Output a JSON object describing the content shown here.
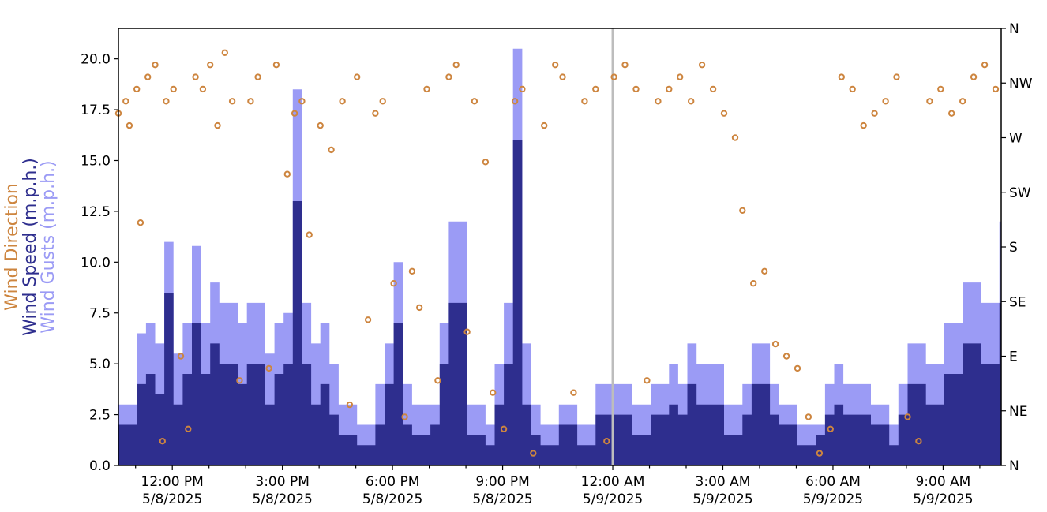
{
  "chart_data": {
    "type": "area",
    "title": "",
    "ylabel_parts": [
      {
        "text": "Wind Direction",
        "color": "#cd853f"
      },
      {
        "text": "Wind Speed (m.p.h.)",
        "color": "#2e2e8e"
      },
      {
        "text": "Wind Gusts (m.p.h.)",
        "color": "#9b9bf5"
      }
    ],
    "ylim": [
      0,
      21.5
    ],
    "yticks": [
      "0.0",
      "2.5",
      "5.0",
      "7.5",
      "10.0",
      "12.5",
      "15.0",
      "17.5",
      "20.0"
    ],
    "y2_ticks": [
      "N",
      "NE",
      "E",
      "SE",
      "S",
      "SW",
      "W",
      "NW",
      "N"
    ],
    "y2_range_degrees": [
      0,
      360
    ],
    "x_start": "5/8/2025 10:32 AM",
    "x_end": "5/9/2025 10:35 AM",
    "x_ticks": [
      {
        "time": "12:00 PM",
        "date": "5/8/2025"
      },
      {
        "time": "3:00 PM",
        "date": "5/8/2025"
      },
      {
        "time": "6:00 PM",
        "date": "5/8/2025"
      },
      {
        "time": "9:00 PM",
        "date": "5/8/2025"
      },
      {
        "time": "12:00 AM",
        "date": "5/9/2025"
      },
      {
        "time": "3:00 AM",
        "date": "5/9/2025"
      },
      {
        "time": "6:00 AM",
        "date": "5/9/2025"
      },
      {
        "time": "9:00 AM",
        "date": "5/9/2025"
      }
    ],
    "midnight_marker": "5/9/2025 12:00 AM",
    "grid": false,
    "colors": {
      "direction": "#cd853f",
      "speed": "#2e2e8e",
      "gusts": "#9b9bf5",
      "marker_line": "#bdbdbd"
    },
    "series": [
      {
        "name": "Wind Gusts (m.p.h.)",
        "kind": "area",
        "x_hours": [
          0,
          0.5,
          0.75,
          1,
          1.25,
          1.5,
          1.75,
          2,
          2.25,
          2.5,
          2.75,
          3,
          3.25,
          3.5,
          4,
          4.25,
          4.5,
          4.75,
          5,
          5.25,
          5.5,
          5.75,
          6,
          6.5,
          7,
          7.25,
          7.5,
          7.75,
          8,
          8.5,
          8.75,
          9,
          9.5,
          10,
          10.25,
          10.5,
          10.75,
          11,
          11.25,
          11.5,
          12,
          12.5,
          13,
          13.5,
          14,
          14.5,
          15,
          15.25,
          15.5,
          15.75,
          16,
          16.5,
          17,
          17.25,
          17.5,
          17.75,
          18,
          18.5,
          19,
          19.25,
          19.5,
          19.75,
          20,
          20.5,
          21,
          21.25,
          21.5,
          21.75,
          22,
          22.5,
          23,
          23.5,
          24
        ],
        "values": [
          3,
          6.5,
          7,
          6,
          11,
          5.5,
          7,
          10.8,
          7,
          9,
          8,
          8,
          7,
          8,
          5.5,
          7,
          7.5,
          18.5,
          8,
          6,
          7,
          5,
          3,
          2,
          4,
          6,
          10,
          4,
          3,
          3,
          7,
          12,
          3,
          2,
          5,
          8,
          20.5,
          6,
          3,
          2,
          3,
          2,
          4,
          4,
          3,
          4,
          5,
          4,
          6,
          5,
          5,
          3,
          4,
          6,
          6,
          4,
          3,
          2,
          2,
          4,
          5,
          4,
          4,
          3,
          2,
          4,
          6,
          6,
          5,
          7,
          9,
          8,
          12
        ]
      },
      {
        "name": "Wind Speed (m.p.h.)",
        "kind": "area",
        "x_hours": [
          0,
          0.5,
          0.75,
          1,
          1.25,
          1.5,
          1.75,
          2,
          2.25,
          2.5,
          2.75,
          3,
          3.25,
          3.5,
          4,
          4.25,
          4.5,
          4.75,
          5,
          5.25,
          5.5,
          5.75,
          6,
          6.5,
          7,
          7.25,
          7.5,
          7.75,
          8,
          8.5,
          8.75,
          9,
          9.5,
          10,
          10.25,
          10.5,
          10.75,
          11,
          11.25,
          11.5,
          12,
          12.5,
          13,
          13.5,
          14,
          14.5,
          15,
          15.25,
          15.5,
          15.75,
          16,
          16.5,
          17,
          17.25,
          17.5,
          17.75,
          18,
          18.5,
          19,
          19.25,
          19.5,
          19.75,
          20,
          20.5,
          21,
          21.25,
          21.5,
          21.75,
          22,
          22.5,
          23,
          23.5,
          24
        ],
        "values": [
          2,
          4,
          4.5,
          3.5,
          8.5,
          3,
          4.5,
          7,
          4.5,
          6,
          5,
          5,
          4,
          5,
          3,
          4.5,
          5,
          13,
          5,
          3,
          4,
          2.5,
          1.5,
          1,
          2,
          4,
          7,
          2,
          1.5,
          2,
          5,
          8,
          1.5,
          1,
          3,
          5,
          16,
          3,
          1.5,
          1,
          2,
          1,
          2.5,
          2.5,
          1.5,
          2.5,
          3,
          2.5,
          4,
          3,
          3,
          1.5,
          2.5,
          4,
          4,
          2.5,
          2,
          1,
          1.5,
          2.5,
          3,
          2.5,
          2.5,
          2,
          1,
          2.5,
          4,
          4,
          3,
          4.5,
          6,
          5,
          8
        ]
      },
      {
        "name": "Wind Direction",
        "kind": "scatter",
        "x_hours": [
          0,
          0.2,
          0.3,
          0.5,
          0.6,
          0.8,
          1,
          1.2,
          1.3,
          1.5,
          1.7,
          1.9,
          2.1,
          2.3,
          2.5,
          2.7,
          2.9,
          3.1,
          3.3,
          3.6,
          3.8,
          4.1,
          4.3,
          4.6,
          4.8,
          5,
          5.2,
          5.5,
          5.8,
          6.1,
          6.3,
          6.5,
          6.8,
          7,
          7.2,
          7.5,
          7.8,
          8,
          8.2,
          8.4,
          8.7,
          9,
          9.2,
          9.5,
          9.7,
          10,
          10.2,
          10.5,
          10.8,
          11,
          11.3,
          11.6,
          11.9,
          12.1,
          12.4,
          12.7,
          13,
          13.3,
          13.5,
          13.8,
          14.1,
          14.4,
          14.7,
          15,
          15.3,
          15.6,
          15.9,
          16.2,
          16.5,
          16.8,
          17,
          17.3,
          17.6,
          17.9,
          18.2,
          18.5,
          18.8,
          19.1,
          19.4,
          19.7,
          20,
          20.3,
          20.6,
          20.9,
          21.2,
          21.5,
          21.8,
          22.1,
          22.4,
          22.7,
          23,
          23.3,
          23.6,
          23.9
        ],
        "values_deg": [
          290,
          300,
          280,
          310,
          200,
          320,
          330,
          20,
          300,
          310,
          90,
          30,
          320,
          310,
          330,
          280,
          340,
          300,
          70,
          300,
          320,
          80,
          330,
          240,
          290,
          300,
          190,
          280,
          260,
          300,
          50,
          320,
          120,
          290,
          300,
          150,
          40,
          160,
          130,
          310,
          70,
          320,
          330,
          110,
          300,
          250,
          60,
          30,
          300,
          310,
          10,
          280,
          330,
          320,
          60,
          300,
          310,
          20,
          320,
          330,
          310,
          70,
          300,
          310,
          320,
          300,
          330,
          310,
          290,
          270,
          210,
          150,
          160,
          100,
          90,
          80,
          40,
          10,
          30,
          320,
          310,
          280,
          290,
          300,
          320,
          40,
          20,
          300,
          310,
          290,
          300,
          320,
          330,
          310
        ]
      }
    ]
  }
}
